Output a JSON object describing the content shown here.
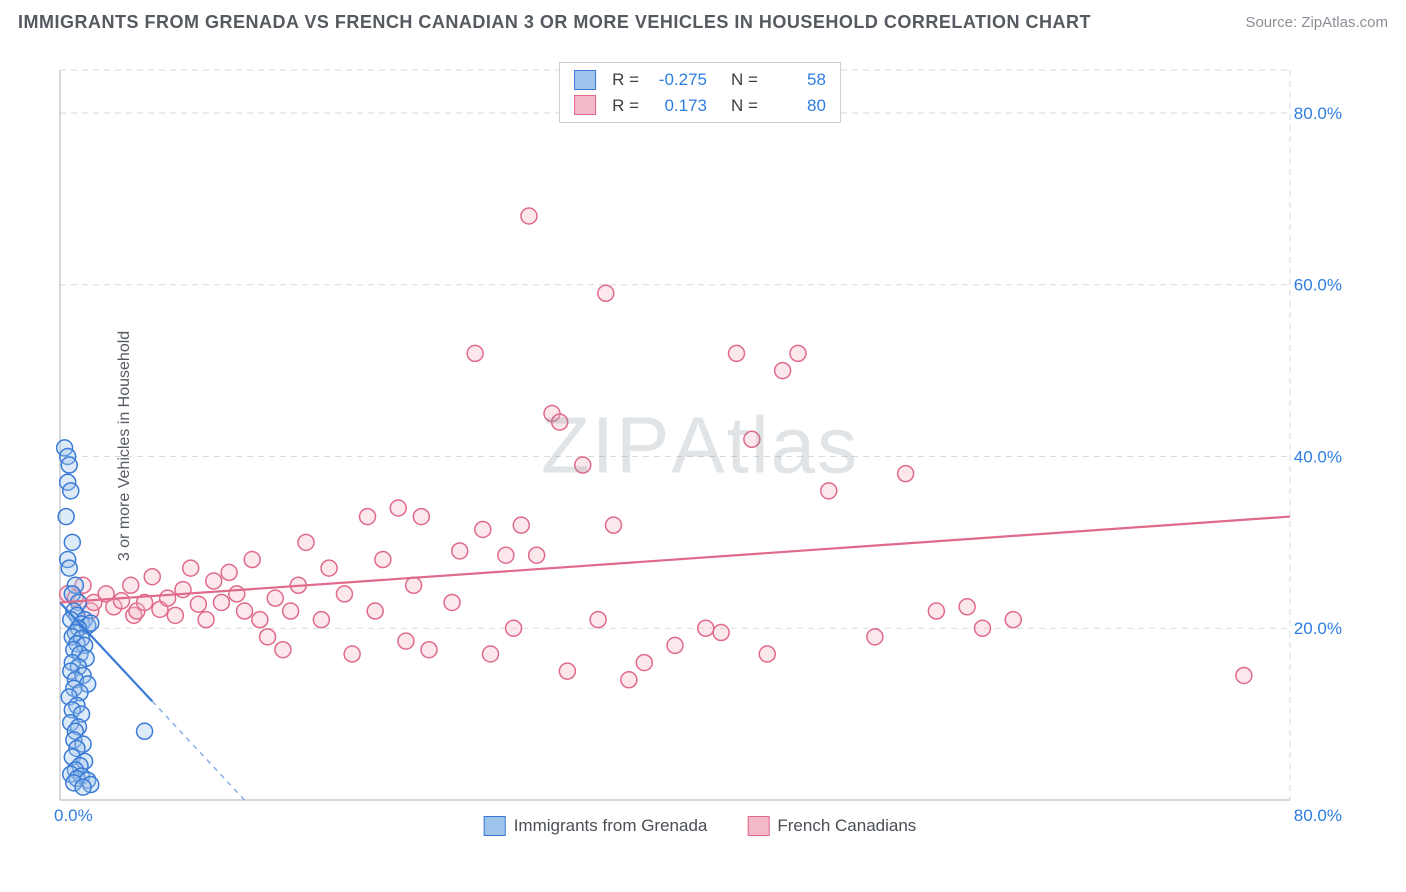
{
  "title": "IMMIGRANTS FROM GRENADA VS FRENCH CANADIAN 3 OR MORE VEHICLES IN HOUSEHOLD CORRELATION CHART",
  "source": "Source: ZipAtlas.com",
  "ylabel": "3 or more Vehicles in Household",
  "watermark_a": "ZIP",
  "watermark_b": "Atlas",
  "chart": {
    "type": "scatter",
    "xlim": [
      0,
      80
    ],
    "ylim": [
      0,
      85
    ],
    "x_axis_label_min": "0.0%",
    "x_axis_label_max": "80.0%",
    "y_ticks": [
      20,
      40,
      60,
      80
    ],
    "y_tick_labels": [
      "20.0%",
      "40.0%",
      "60.0%",
      "80.0%"
    ],
    "background_color": "#ffffff",
    "grid_color": "#d7dadd",
    "grid_dash": "6,5",
    "axis_line_color": "#c9ccd0",
    "marker_radius": 8,
    "marker_stroke_width": 1.5,
    "marker_fill_opacity": 0.35,
    "trend_line_width": 2.2,
    "trend_dash_extension": "5,5"
  },
  "series": [
    {
      "name": "Immigrants from Grenada",
      "stroke": "#3a7bd5",
      "fill": "#9ec4ec",
      "R_label": "R =",
      "R_value": "-0.275",
      "N_label": "N =",
      "N_value": "58",
      "trend": {
        "x1": 0,
        "y1": 23,
        "x2": 12,
        "y2": 0,
        "dash_to_x": 12
      },
      "points": [
        [
          0.3,
          41
        ],
        [
          0.5,
          40
        ],
        [
          0.6,
          39
        ],
        [
          0.5,
          37
        ],
        [
          0.7,
          36
        ],
        [
          0.4,
          33
        ],
        [
          0.8,
          30
        ],
        [
          0.5,
          28
        ],
        [
          0.6,
          27
        ],
        [
          1.0,
          25
        ],
        [
          0.8,
          24
        ],
        [
          1.2,
          23
        ],
        [
          0.9,
          22
        ],
        [
          1.1,
          21.5
        ],
        [
          0.7,
          21
        ],
        [
          1.6,
          21
        ],
        [
          1.4,
          20.5
        ],
        [
          1.8,
          20.3
        ],
        [
          2.0,
          20.6
        ],
        [
          1.2,
          20
        ],
        [
          1.0,
          19.5
        ],
        [
          0.8,
          19
        ],
        [
          1.4,
          18.8
        ],
        [
          1.1,
          18.2
        ],
        [
          1.6,
          18
        ],
        [
          0.9,
          17.5
        ],
        [
          1.3,
          17
        ],
        [
          1.7,
          16.5
        ],
        [
          0.8,
          16
        ],
        [
          1.2,
          15.5
        ],
        [
          0.7,
          15
        ],
        [
          1.5,
          14.5
        ],
        [
          1.0,
          14
        ],
        [
          1.8,
          13.5
        ],
        [
          0.9,
          13
        ],
        [
          1.3,
          12.5
        ],
        [
          0.6,
          12
        ],
        [
          1.1,
          11
        ],
        [
          0.8,
          10.5
        ],
        [
          1.4,
          10
        ],
        [
          0.7,
          9
        ],
        [
          1.2,
          8.5
        ],
        [
          1.0,
          8
        ],
        [
          0.9,
          7
        ],
        [
          1.5,
          6.5
        ],
        [
          1.1,
          6
        ],
        [
          0.8,
          5
        ],
        [
          1.6,
          4.5
        ],
        [
          1.3,
          4
        ],
        [
          1.0,
          3.5
        ],
        [
          0.7,
          3
        ],
        [
          1.4,
          2.8
        ],
        [
          1.1,
          2.5
        ],
        [
          1.8,
          2.3
        ],
        [
          0.9,
          2
        ],
        [
          2.0,
          1.8
        ],
        [
          1.5,
          1.5
        ],
        [
          5.5,
          8
        ]
      ]
    },
    {
      "name": "French Canadians",
      "stroke": "#e06a8a",
      "fill": "#f4b9c8",
      "R_label": "R =",
      "R_value": "0.173",
      "N_label": "N =",
      "N_value": "80",
      "trend": {
        "x1": 0,
        "y1": 23,
        "x2": 80,
        "y2": 33
      },
      "points": [
        [
          0.5,
          24
        ],
        [
          1,
          23.5
        ],
        [
          1.5,
          25
        ],
        [
          2,
          22
        ],
        [
          2.2,
          23
        ],
        [
          3,
          24
        ],
        [
          3.5,
          22.5
        ],
        [
          4,
          23.2
        ],
        [
          4.6,
          25
        ],
        [
          4.8,
          21.5
        ],
        [
          5,
          22
        ],
        [
          5.5,
          23
        ],
        [
          6,
          26
        ],
        [
          6.5,
          22.2
        ],
        [
          7,
          23.5
        ],
        [
          7.5,
          21.5
        ],
        [
          8,
          24.5
        ],
        [
          8.5,
          27
        ],
        [
          9,
          22.8
        ],
        [
          9.5,
          21
        ],
        [
          10,
          25.5
        ],
        [
          10.5,
          23
        ],
        [
          11,
          26.5
        ],
        [
          11.5,
          24
        ],
        [
          12,
          22
        ],
        [
          12.5,
          28
        ],
        [
          13,
          21
        ],
        [
          13.5,
          19
        ],
        [
          14,
          23.5
        ],
        [
          14.5,
          17.5
        ],
        [
          15,
          22
        ],
        [
          15.5,
          25
        ],
        [
          16,
          30
        ],
        [
          17,
          21
        ],
        [
          17.5,
          27
        ],
        [
          18.5,
          24
        ],
        [
          19,
          17
        ],
        [
          20,
          33
        ],
        [
          20.5,
          22
        ],
        [
          21,
          28
        ],
        [
          22,
          34
        ],
        [
          22.5,
          18.5
        ],
        [
          23,
          25
        ],
        [
          23.5,
          33
        ],
        [
          24,
          17.5
        ],
        [
          25.5,
          23
        ],
        [
          26,
          29
        ],
        [
          27,
          52
        ],
        [
          27.5,
          31.5
        ],
        [
          28,
          17
        ],
        [
          29,
          28.5
        ],
        [
          29.5,
          20
        ],
        [
          30,
          32
        ],
        [
          30.5,
          68
        ],
        [
          31,
          28.5
        ],
        [
          32,
          45
        ],
        [
          32.5,
          44
        ],
        [
          33,
          15
        ],
        [
          34,
          39
        ],
        [
          35,
          21
        ],
        [
          35.5,
          59
        ],
        [
          36,
          32
        ],
        [
          37,
          14
        ],
        [
          38,
          16
        ],
        [
          40,
          18
        ],
        [
          42,
          20
        ],
        [
          43,
          19.5
        ],
        [
          44,
          52
        ],
        [
          45,
          42
        ],
        [
          46,
          17
        ],
        [
          47,
          50
        ],
        [
          48,
          52
        ],
        [
          50,
          36
        ],
        [
          53,
          19
        ],
        [
          55,
          38
        ],
        [
          57,
          22
        ],
        [
          59,
          22.5
        ],
        [
          60,
          20
        ],
        [
          62,
          21
        ],
        [
          77,
          14.5
        ]
      ]
    }
  ],
  "bottom_legend": {
    "items": [
      "Immigrants from Grenada",
      "French Canadians"
    ]
  }
}
